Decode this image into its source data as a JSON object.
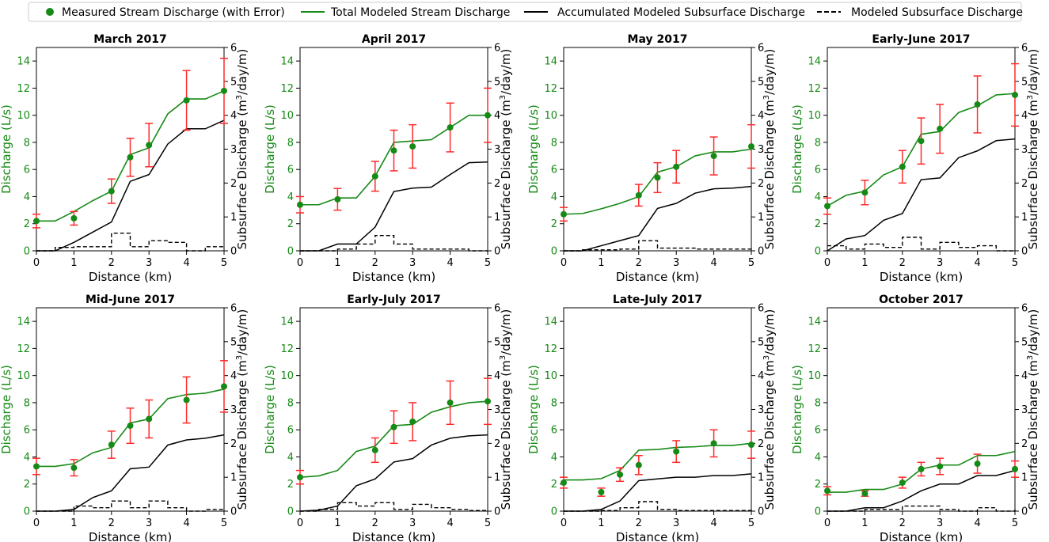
{
  "legend": {
    "measured": "Measured Stream Discharge (with Error)",
    "total": "Total Modeled Stream Discharge",
    "accumulated": "Accumulated Modeled Subsurface Discharge",
    "subsurface": "Modeled Subsurface Discharge"
  },
  "axes": {
    "xlabel": "Distance (km)",
    "ylabel_left": "Discharge (L/s)",
    "ylabel_right": "Subsurface Discharge (m³/day/m)",
    "ylabel_right_base": "Subsurface Discharge (m",
    "ylabel_right_sup": "3",
    "ylabel_right_end": "/day/m)",
    "xlim": [
      0,
      5
    ],
    "ylim_left": [
      0,
      15
    ],
    "ylim_right": [
      0,
      6
    ],
    "xticks": [
      0,
      1,
      2,
      3,
      4,
      5
    ],
    "yticks_left": [
      0,
      2,
      4,
      6,
      8,
      10,
      12,
      14
    ],
    "yticks_right": [
      0,
      1,
      2,
      3,
      4,
      5,
      6
    ]
  },
  "colors": {
    "green": "#168a16",
    "error": "#ff2b2b",
    "black": "#000000"
  },
  "chart_data": [
    {
      "type": "line",
      "title": "March 2017",
      "measured": {
        "x": [
          0,
          1,
          2,
          2.5,
          3,
          4,
          5
        ],
        "y": [
          2.2,
          2.4,
          4.4,
          6.9,
          7.8,
          11.1,
          11.8
        ],
        "err": [
          0.5,
          0.5,
          0.9,
          1.4,
          1.6,
          2.2,
          2.4
        ]
      },
      "total": {
        "x": [
          0,
          0.5,
          1,
          1.5,
          2,
          2.5,
          3,
          3.5,
          4,
          4.5,
          5
        ],
        "y": [
          2.2,
          2.2,
          2.9,
          3.7,
          4.4,
          7.1,
          7.6,
          10.1,
          11.2,
          11.2,
          11.8
        ]
      },
      "accumulated": {
        "x": [
          0,
          0.5,
          1,
          1.5,
          2,
          2.5,
          3,
          3.5,
          4,
          4.5,
          5
        ],
        "y": [
          0,
          0,
          0.25,
          0.55,
          0.85,
          2.05,
          2.25,
          3.15,
          3.6,
          3.6,
          3.85
        ]
      },
      "subsurface": {
        "x": [
          0,
          0.5,
          1,
          1.5,
          2,
          2.5,
          3,
          3.5,
          4,
          4.5,
          5
        ],
        "y": [
          0,
          0.1,
          0.12,
          0.12,
          0.52,
          0.12,
          0.3,
          0.25,
          0,
          0.12,
          0.12
        ]
      }
    },
    {
      "type": "line",
      "title": "April 2017",
      "measured": {
        "x": [
          0,
          1,
          2,
          2.5,
          3,
          4,
          5
        ],
        "y": [
          3.4,
          3.8,
          5.5,
          7.4,
          7.7,
          9.1,
          10.0
        ],
        "err": [
          0.6,
          0.8,
          1.1,
          1.5,
          1.6,
          1.8,
          2.0
        ]
      },
      "total": {
        "x": [
          0,
          0.5,
          1,
          1.5,
          2,
          2.5,
          3,
          3.5,
          4,
          4.5,
          5
        ],
        "y": [
          3.4,
          3.4,
          3.9,
          3.9,
          5.5,
          8.0,
          8.1,
          8.2,
          9.1,
          10.0,
          10.0
        ]
      },
      "accumulated": {
        "x": [
          0,
          0.5,
          1,
          1.5,
          2,
          2.5,
          3,
          3.5,
          4,
          4.5,
          5
        ],
        "y": [
          0,
          0,
          0.2,
          0.2,
          0.7,
          1.75,
          1.85,
          1.88,
          2.25,
          2.6,
          2.62
        ]
      },
      "subsurface": {
        "x": [
          0,
          0.5,
          1,
          1.5,
          2,
          2.5,
          3,
          3.5,
          4,
          4.5,
          5
        ],
        "y": [
          0,
          0,
          0.05,
          0.2,
          0.45,
          0.2,
          0.05,
          0.05,
          0.05,
          0,
          0
        ]
      }
    },
    {
      "type": "line",
      "title": "May 2017",
      "measured": {
        "x": [
          0,
          2,
          2.5,
          3,
          4,
          5
        ],
        "y": [
          2.7,
          4.1,
          5.4,
          6.2,
          7.0,
          7.7
        ],
        "err": [
          0.5,
          0.8,
          1.1,
          1.2,
          1.4,
          1.6
        ]
      },
      "total": {
        "x": [
          0,
          0.5,
          1,
          1.5,
          2,
          2.5,
          3,
          3.5,
          4,
          4.5,
          5
        ],
        "y": [
          2.7,
          2.75,
          3.1,
          3.5,
          4.0,
          5.8,
          6.2,
          7.0,
          7.3,
          7.3,
          7.5
        ]
      },
      "accumulated": {
        "x": [
          0,
          0.5,
          1,
          1.5,
          2,
          2.5,
          3,
          3.5,
          4,
          4.5,
          5
        ],
        "y": [
          0,
          0,
          0.15,
          0.3,
          0.45,
          1.25,
          1.4,
          1.7,
          1.83,
          1.85,
          1.9
        ]
      },
      "subsurface": {
        "x": [
          0,
          0.5,
          1,
          1.5,
          2,
          2.5,
          3,
          3.5,
          4,
          4.5,
          5
        ],
        "y": [
          0,
          0.03,
          0.03,
          0.05,
          0.3,
          0.08,
          0.08,
          0.05,
          0.05,
          0.05,
          0
        ]
      }
    },
    {
      "type": "line",
      "title": "Early-June 2017",
      "measured": {
        "x": [
          0,
          1,
          2,
          2.5,
          3,
          4,
          5
        ],
        "y": [
          3.3,
          4.3,
          6.2,
          8.1,
          9.0,
          10.8,
          11.5
        ],
        "err": [
          0.6,
          0.9,
          1.2,
          1.7,
          1.8,
          2.1,
          2.3
        ]
      },
      "total": {
        "x": [
          0,
          0.5,
          1,
          1.5,
          2,
          2.5,
          3,
          3.5,
          4,
          4.5,
          5
        ],
        "y": [
          3.3,
          4.1,
          4.4,
          5.6,
          6.2,
          8.6,
          8.8,
          10.2,
          10.7,
          11.5,
          11.6
        ]
      },
      "accumulated": {
        "x": [
          0,
          0.5,
          1,
          1.5,
          2,
          2.5,
          3,
          3.5,
          4,
          4.5,
          5
        ],
        "y": [
          0,
          0.35,
          0.45,
          0.9,
          1.1,
          2.1,
          2.15,
          2.75,
          2.95,
          3.25,
          3.3
        ]
      },
      "subsurface": {
        "x": [
          0,
          0.5,
          1,
          1.5,
          2,
          2.5,
          3,
          3.5,
          4,
          4.5,
          5
        ],
        "y": [
          0.15,
          0.05,
          0.2,
          0.1,
          0.4,
          0.05,
          0.25,
          0.1,
          0.15,
          0,
          0
        ]
      }
    },
    {
      "type": "line",
      "title": "Mid-June 2017",
      "measured": {
        "x": [
          0,
          1,
          2,
          2.5,
          3,
          4,
          5
        ],
        "y": [
          3.3,
          3.2,
          4.9,
          6.3,
          6.8,
          8.2,
          9.2
        ],
        "err": [
          0.6,
          0.6,
          1.0,
          1.3,
          1.4,
          1.7,
          1.9
        ]
      },
      "total": {
        "x": [
          0,
          0.5,
          1,
          1.5,
          2,
          2.5,
          3,
          3.5,
          4,
          4.5,
          5
        ],
        "y": [
          3.3,
          3.3,
          3.5,
          4.3,
          4.7,
          6.5,
          6.8,
          8.3,
          8.6,
          8.7,
          9.0
        ]
      },
      "accumulated": {
        "x": [
          0,
          0.5,
          1,
          1.5,
          2,
          2.5,
          3,
          3.5,
          4,
          4.5,
          5
        ],
        "y": [
          0,
          0,
          0.05,
          0.4,
          0.6,
          1.25,
          1.3,
          1.95,
          2.1,
          2.15,
          2.25
        ]
      },
      "subsurface": {
        "x": [
          0,
          0.5,
          1,
          1.5,
          2,
          2.5,
          3,
          3.5,
          4,
          4.5,
          5
        ],
        "y": [
          0,
          0,
          0.15,
          0.1,
          0.3,
          0.1,
          0.3,
          0.1,
          0,
          0.05,
          0.05
        ]
      }
    },
    {
      "type": "line",
      "title": "Early-July 2017",
      "measured": {
        "x": [
          0,
          2,
          2.5,
          3,
          4,
          5
        ],
        "y": [
          2.5,
          4.5,
          6.2,
          6.6,
          8.0,
          8.1
        ],
        "err": [
          0.5,
          0.9,
          1.2,
          1.4,
          1.6,
          1.7
        ]
      },
      "total": {
        "x": [
          0,
          0.5,
          1,
          1.5,
          2,
          2.5,
          3,
          3.5,
          4,
          4.5,
          5
        ],
        "y": [
          2.5,
          2.6,
          3.0,
          4.4,
          4.8,
          6.3,
          6.4,
          7.3,
          7.7,
          8.0,
          8.1
        ]
      },
      "accumulated": {
        "x": [
          0,
          0.5,
          1,
          1.5,
          2,
          2.5,
          3,
          3.5,
          4,
          4.5,
          5
        ],
        "y": [
          0,
          0.03,
          0.15,
          0.75,
          0.95,
          1.45,
          1.55,
          1.95,
          2.15,
          2.22,
          2.25
        ]
      },
      "subsurface": {
        "x": [
          0,
          0.5,
          1,
          1.5,
          2,
          2.5,
          3,
          3.5,
          4,
          4.5,
          5
        ],
        "y": [
          0,
          0.05,
          0.25,
          0.15,
          0.25,
          0.05,
          0.2,
          0.1,
          0.05,
          0.02,
          0.02
        ]
      }
    },
    {
      "type": "line",
      "title": "Late-July 2017",
      "measured": {
        "x": [
          0,
          1,
          1.5,
          2,
          3,
          4,
          5
        ],
        "y": [
          2.1,
          1.4,
          2.7,
          3.4,
          4.4,
          5.0,
          4.9
        ],
        "err": [
          0.4,
          0.3,
          0.5,
          0.7,
          0.8,
          1.0,
          1.0
        ]
      },
      "total": {
        "x": [
          0,
          0.5,
          1,
          1.5,
          2,
          2.5,
          3,
          3.5,
          4,
          4.5,
          5
        ],
        "y": [
          2.3,
          2.3,
          2.4,
          3.0,
          4.5,
          4.55,
          4.7,
          4.75,
          4.85,
          4.85,
          5.0
        ]
      },
      "accumulated": {
        "x": [
          0,
          0.5,
          1,
          1.5,
          2,
          2.5,
          3,
          3.5,
          4,
          4.5,
          5
        ],
        "y": [
          0,
          0,
          0.05,
          0.3,
          0.9,
          0.95,
          1.0,
          1.0,
          1.05,
          1.05,
          1.1
        ]
      },
      "subsurface": {
        "x": [
          0,
          0.5,
          1,
          1.5,
          2,
          2.5,
          3,
          3.5,
          4,
          4.5,
          5
        ],
        "y": [
          0,
          0,
          0.02,
          0.1,
          0.28,
          0.05,
          0.02,
          0.02,
          0.02,
          0.02,
          0
        ]
      }
    },
    {
      "type": "line",
      "title": "October 2017",
      "measured": {
        "x": [
          0,
          1,
          2,
          2.5,
          3,
          4,
          5
        ],
        "y": [
          1.5,
          1.3,
          2.1,
          3.1,
          3.3,
          3.5,
          3.1
        ],
        "err": [
          0.3,
          0.2,
          0.4,
          0.5,
          0.6,
          0.7,
          0.6
        ]
      },
      "total": {
        "x": [
          0,
          0.5,
          1,
          1.5,
          2,
          2.5,
          3,
          3.5,
          4,
          4.5,
          5
        ],
        "y": [
          1.4,
          1.4,
          1.6,
          1.6,
          2.0,
          3.1,
          3.4,
          3.4,
          4.1,
          4.1,
          4.4
        ]
      },
      "accumulated": {
        "x": [
          0,
          0.5,
          1,
          1.5,
          2,
          2.5,
          3,
          3.5,
          4,
          4.5,
          5
        ],
        "y": [
          0,
          0,
          0.1,
          0.1,
          0.3,
          0.6,
          0.8,
          0.8,
          1.05,
          1.05,
          1.2
        ]
      },
      "subsurface": {
        "x": [
          0,
          0.5,
          1,
          1.5,
          2,
          2.5,
          3,
          3.5,
          4,
          4.5,
          5
        ],
        "y": [
          0,
          0,
          0.05,
          0.05,
          0.15,
          0.15,
          0.05,
          0,
          0.1,
          0,
          0.05
        ]
      }
    }
  ]
}
